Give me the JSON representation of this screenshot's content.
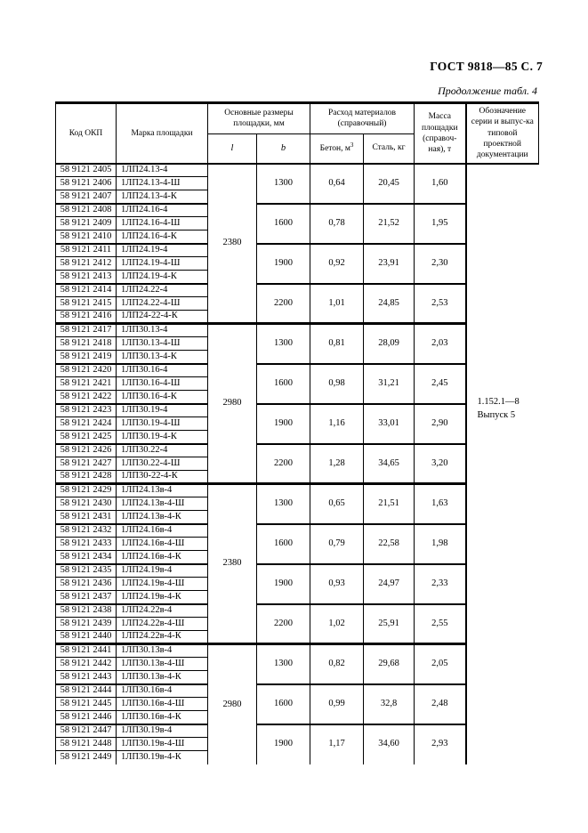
{
  "page": {
    "gost_header": "ГОСТ 9818—85 С. 7",
    "continuation": "Продолжение табл. 4"
  },
  "table": {
    "headers": {
      "code": "Код ОКП",
      "mark": "Марка площадки",
      "dims": "Основные размеры площадки, мм",
      "l": "l",
      "b": "b",
      "materials": "Расход материалов (справочный)",
      "concrete": "Бетон, м",
      "concrete_sup": "3",
      "steel": "Сталь, кг",
      "mass": "Масса площадки (справоч-ная), т",
      "series": "Обозначение серии и выпус-ка типовой проектной документации"
    },
    "series_note": {
      "line1": "1.152.1—8",
      "line2": "Выпуск 5"
    },
    "groups": [
      {
        "l": "2380",
        "l_span": 12,
        "b": "1300",
        "concrete": "0,64",
        "steel": "20,45",
        "mass": "1,60",
        "rows": [
          [
            "58 9121 2405",
            "1ЛП24.13-4"
          ],
          [
            "58 9121 2406",
            "1ЛП24.13-4-Ш"
          ],
          [
            "58 9121 2407",
            "1ЛП24.13-4-К"
          ]
        ]
      },
      {
        "b": "1600",
        "concrete": "0,78",
        "steel": "21,52",
        "mass": "1,95",
        "rows": [
          [
            "58 9121 2408",
            "1ЛП24.16-4"
          ],
          [
            "58 9121 2409",
            "1ЛП24.16-4-Ш"
          ],
          [
            "58 9121 2410",
            "1ЛП24.16-4-К"
          ]
        ]
      },
      {
        "b": "1900",
        "concrete": "0,92",
        "steel": "23,91",
        "mass": "2,30",
        "rows": [
          [
            "58 9121 2411",
            "1ЛП24.19-4"
          ],
          [
            "58 9121 2412",
            "1ЛП24.19-4-Ш"
          ],
          [
            "58 9121 2413",
            "1ЛП24.19-4-К"
          ]
        ]
      },
      {
        "b": "2200",
        "concrete": "1,01",
        "steel": "24,85",
        "mass": "2,53",
        "rows": [
          [
            "58 9121 2414",
            "1ЛП24.22-4"
          ],
          [
            "58 9121 2415",
            "1ЛП24.22-4-Ш"
          ],
          [
            "58 9121 2416",
            "1ЛП24-22-4-К"
          ]
        ]
      },
      {
        "l": "2980",
        "l_span": 12,
        "b": "1300",
        "concrete": "0,81",
        "steel": "28,09",
        "mass": "2,03",
        "rows": [
          [
            "58 9121 2417",
            "1ЛП30.13-4"
          ],
          [
            "58 9121 2418",
            "1ЛП30.13-4-Ш"
          ],
          [
            "58 9121 2419",
            "1ЛП30.13-4-К"
          ]
        ]
      },
      {
        "b": "1600",
        "concrete": "0,98",
        "steel": "31,21",
        "mass": "2,45",
        "rows": [
          [
            "58 9121 2420",
            "1ЛП30.16-4"
          ],
          [
            "58 9121 2421",
            "1ЛП30.16-4-Ш"
          ],
          [
            "58 9121 2422",
            "1ЛП30.16-4-К"
          ]
        ]
      },
      {
        "b": "1900",
        "concrete": "1,16",
        "steel": "33,01",
        "mass": "2,90",
        "rows": [
          [
            "58 9121 2423",
            "1ЛП30.19-4"
          ],
          [
            "58 9121 2424",
            "1ЛП30.19-4-Ш"
          ],
          [
            "58 9121 2425",
            "1ЛП30.19-4-К"
          ]
        ]
      },
      {
        "b": "2200",
        "concrete": "1,28",
        "steel": "34,65",
        "mass": "3,20",
        "rows": [
          [
            "58 9121 2426",
            "1ЛП30.22-4"
          ],
          [
            "58 9121 2427",
            "1ЛП30.22-4-Ш"
          ],
          [
            "58 9121 2428",
            "1ЛП30-22-4-К"
          ]
        ]
      },
      {
        "l": "2380",
        "l_span": 12,
        "b": "1300",
        "concrete": "0,65",
        "steel": "21,51",
        "mass": "1,63",
        "rows": [
          [
            "58 9121 2429",
            "1ЛП24.13в-4"
          ],
          [
            "58 9121 2430",
            "1ЛП24.13в-4-Ш"
          ],
          [
            "58 9121 2431",
            "1ЛП24.13в-4-К"
          ]
        ]
      },
      {
        "b": "1600",
        "concrete": "0,79",
        "steel": "22,58",
        "mass": "1,98",
        "rows": [
          [
            "58 9121 2432",
            "1ЛП24.16в-4"
          ],
          [
            "58 9121 2433",
            "1ЛП24.16в-4-Ш"
          ],
          [
            "58 9121 2434",
            "1ЛП24.16в-4-К"
          ]
        ]
      },
      {
        "b": "1900",
        "concrete": "0,93",
        "steel": "24,97",
        "mass": "2,33",
        "rows": [
          [
            "58 9121 2435",
            "1ЛП24.19в-4"
          ],
          [
            "58 9121 2436",
            "1ЛП24.19в-4-Ш"
          ],
          [
            "58 9121 2437",
            "1ЛП24.19в-4-К"
          ]
        ]
      },
      {
        "b": "2200",
        "concrete": "1,02",
        "steel": "25,91",
        "mass": "2,55",
        "rows": [
          [
            "58 9121 2438",
            "1ЛП24.22в-4"
          ],
          [
            "58 9121 2439",
            "1ЛП24.22в-4-Ш"
          ],
          [
            "58 9121 2440",
            "1ЛП24.22в-4-К"
          ]
        ]
      },
      {
        "l": "2980",
        "l_span": 9,
        "b": "1300",
        "concrete": "0,82",
        "steel": "29,68",
        "mass": "2,05",
        "rows": [
          [
            "58 9121 2441",
            "1ЛП30.13в-4"
          ],
          [
            "58 9121 2442",
            "1ЛП30.13в-4-Ш"
          ],
          [
            "58 9121 2443",
            "1ЛП30.13в-4-К"
          ]
        ]
      },
      {
        "b": "1600",
        "concrete": "0,99",
        "steel": "32,8",
        "mass": "2,48",
        "rows": [
          [
            "58 9121 2444",
            "1ЛП30.16в-4"
          ],
          [
            "58 9121 2445",
            "1ЛП30.16в-4-Ш"
          ],
          [
            "58 9121 2446",
            "1ЛП30.16в-4-К"
          ]
        ]
      },
      {
        "b": "1900",
        "concrete": "1,17",
        "steel": "34,60",
        "mass": "2,93",
        "rows": [
          [
            "58 9121 2447",
            "1ЛП30.19в-4"
          ],
          [
            "58 9121 2448",
            "1ЛП30.19в-4-Ш"
          ],
          [
            "58 9121 2449",
            "1ЛП30.19в-4-К"
          ]
        ]
      }
    ]
  }
}
